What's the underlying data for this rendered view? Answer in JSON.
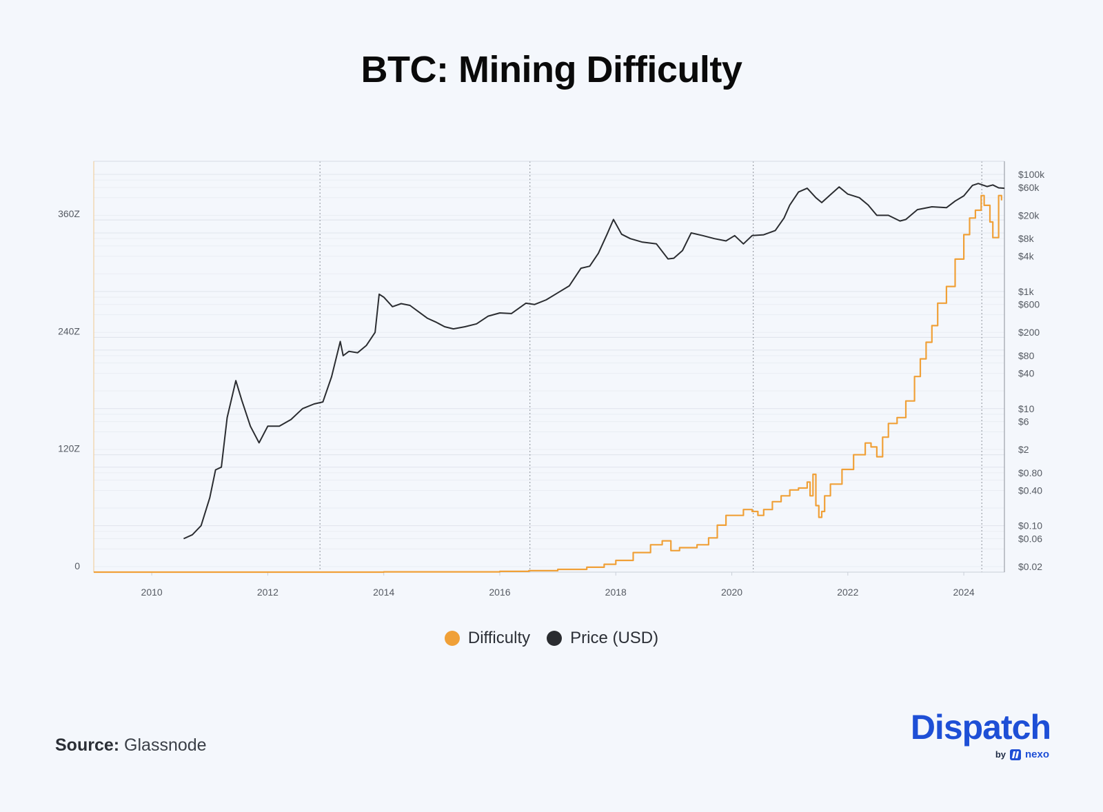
{
  "title": "BTC: Mining Difficulty",
  "legend": {
    "difficulty": "Difficulty",
    "price": "Price (USD)"
  },
  "source": {
    "label": "Source:",
    "value": "Glassnode"
  },
  "logo": {
    "name": "Dispatch",
    "by": "by",
    "brand": "nexo"
  },
  "colors": {
    "background": "#f4f7fc",
    "difficulty": "#f0a037",
    "price": "#2a2c30",
    "brand": "#1e4fd6"
  },
  "chart_data": {
    "type": "line",
    "x_axis": {
      "ticks": [
        "2010",
        "2012",
        "2014",
        "2016",
        "2018",
        "2020",
        "2022",
        "2024"
      ],
      "range": [
        2009.0,
        2024.7
      ]
    },
    "y_axis_left": {
      "label": "",
      "ticks": [
        "0",
        "120Z",
        "240Z",
        "360Z"
      ],
      "tick_values": [
        0,
        120,
        240,
        360
      ],
      "range": [
        0,
        420
      ]
    },
    "y_axis_right": {
      "label": "",
      "scale": "log",
      "ticks": [
        "$0.02",
        "$0.06",
        "$0.10",
        "$0.40",
        "$0.80",
        "$2",
        "$6",
        "$10",
        "$40",
        "$80",
        "$200",
        "$600",
        "$1k",
        "$4k",
        "$8k",
        "$20k",
        "$60k",
        "$100k"
      ],
      "tick_values": [
        0.02,
        0.06,
        0.1,
        0.4,
        0.8,
        2,
        6,
        10,
        40,
        80,
        200,
        600,
        1000,
        4000,
        8000,
        20000,
        60000,
        100000
      ],
      "range": [
        0.02,
        100000
      ]
    },
    "halving_dates": [
      2012.9,
      2016.52,
      2020.37,
      2024.31
    ],
    "grid": true,
    "legend_position": "bottom-center",
    "series": [
      {
        "name": "Difficulty",
        "axis": "left",
        "x": [
          2009.0,
          2012.0,
          2014.0,
          2016.0,
          2016.5,
          2017.0,
          2017.5,
          2017.8,
          2018.0,
          2018.3,
          2018.6,
          2018.8,
          2018.95,
          2019.1,
          2019.4,
          2019.6,
          2019.75,
          2019.9,
          2020.2,
          2020.35,
          2020.45,
          2020.55,
          2020.7,
          2020.85,
          2021.0,
          2021.15,
          2021.3,
          2021.35,
          2021.4,
          2021.45,
          2021.5,
          2021.55,
          2021.6,
          2021.7,
          2021.9,
          2022.1,
          2022.3,
          2022.4,
          2022.5,
          2022.6,
          2022.7,
          2022.85,
          2023.0,
          2023.15,
          2023.25,
          2023.35,
          2023.45,
          2023.55,
          2023.7,
          2023.85,
          2024.0,
          2024.1,
          2024.2,
          2024.3,
          2024.35,
          2024.45,
          2024.5,
          2024.6,
          2024.65
        ],
        "values": [
          0,
          0,
          0.3,
          0.8,
          1.5,
          2.8,
          5,
          8,
          12,
          20,
          28,
          32,
          22,
          25,
          28,
          35,
          48,
          58,
          64,
          62,
          58,
          64,
          72,
          78,
          84,
          86,
          92,
          78,
          100,
          68,
          56,
          62,
          78,
          90,
          105,
          120,
          132,
          128,
          118,
          138,
          152,
          158,
          175,
          200,
          218,
          235,
          252,
          275,
          292,
          320,
          345,
          362,
          370,
          385,
          375,
          358,
          342,
          385,
          380
        ]
      },
      {
        "name": "Price (USD)",
        "axis": "right",
        "x": [
          2010.55,
          2010.7,
          2010.85,
          2011.0,
          2011.1,
          2011.2,
          2011.3,
          2011.45,
          2011.55,
          2011.7,
          2011.85,
          2012.0,
          2012.2,
          2012.4,
          2012.6,
          2012.8,
          2012.95,
          2013.1,
          2013.25,
          2013.3,
          2013.4,
          2013.55,
          2013.7,
          2013.85,
          2013.92,
          2014.0,
          2014.15,
          2014.3,
          2014.45,
          2014.6,
          2014.75,
          2014.9,
          2015.05,
          2015.2,
          2015.4,
          2015.6,
          2015.8,
          2016.0,
          2016.2,
          2016.45,
          2016.6,
          2016.8,
          2017.0,
          2017.2,
          2017.4,
          2017.55,
          2017.7,
          2017.85,
          2017.96,
          2018.1,
          2018.25,
          2018.45,
          2018.7,
          2018.9,
          2019.0,
          2019.15,
          2019.3,
          2019.5,
          2019.7,
          2019.9,
          2020.05,
          2020.2,
          2020.35,
          2020.55,
          2020.75,
          2020.9,
          2021.0,
          2021.15,
          2021.3,
          2021.45,
          2021.55,
          2021.7,
          2021.85,
          2022.0,
          2022.2,
          2022.35,
          2022.5,
          2022.7,
          2022.9,
          2023.0,
          2023.2,
          2023.45,
          2023.7,
          2023.85,
          2024.0,
          2024.15,
          2024.25,
          2024.4,
          2024.5,
          2024.6,
          2024.7
        ],
        "values": [
          0.06,
          0.07,
          0.1,
          0.3,
          0.9,
          1.0,
          7,
          30,
          14,
          5,
          2.6,
          5,
          5,
          6.5,
          10,
          12,
          13,
          35,
          140,
          80,
          95,
          90,
          120,
          200,
          900,
          800,
          550,
          620,
          580,
          450,
          350,
          300,
          250,
          230,
          250,
          280,
          380,
          430,
          420,
          630,
          600,
          720,
          950,
          1250,
          2500,
          2700,
          4500,
          9500,
          17000,
          9500,
          8000,
          7000,
          6500,
          3600,
          3700,
          5000,
          10000,
          9000,
          8000,
          7300,
          9000,
          6500,
          9000,
          9300,
          11000,
          18000,
          30000,
          50000,
          58000,
          40000,
          33000,
          45000,
          61000,
          46000,
          40000,
          30000,
          20000,
          20000,
          16000,
          17000,
          25000,
          28000,
          27000,
          35000,
          43000,
          65000,
          70000,
          62000,
          66000,
          59000,
          58000
        ]
      }
    ]
  }
}
